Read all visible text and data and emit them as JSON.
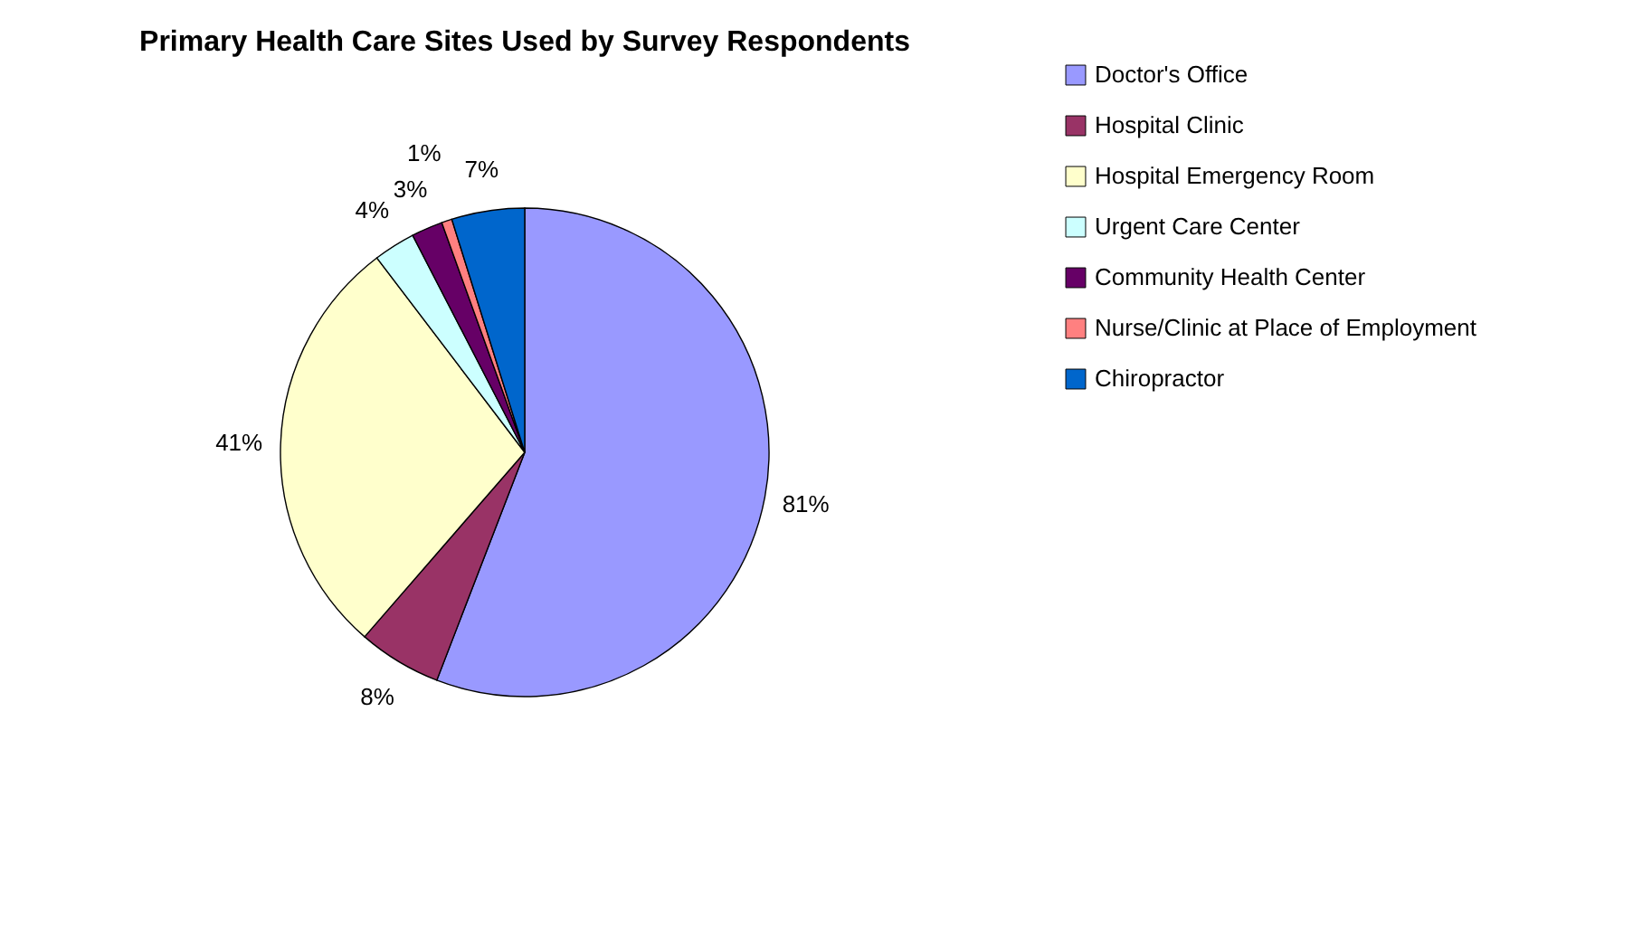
{
  "chart_data": {
    "type": "pie",
    "title": "Primary Health Care Sites Used by Survey Respondents",
    "categories": [
      "Doctor's Office",
      "Hospital Clinic",
      "Hospital Emergency Room",
      "Urgent Care Center",
      "Community Health Center",
      "Nurse/Clinic at Place of Employment",
      "Chiropractor"
    ],
    "values": [
      81,
      8,
      41,
      4,
      3,
      1,
      7
    ],
    "value_labels": [
      "81%",
      "8%",
      "41%",
      "4%",
      "3%",
      "1%",
      "7%"
    ],
    "colors": [
      "#9999ff",
      "#993366",
      "#ffffcc",
      "#ccffff",
      "#660066",
      "#ff8080",
      "#0066cc"
    ],
    "legend": "right"
  }
}
